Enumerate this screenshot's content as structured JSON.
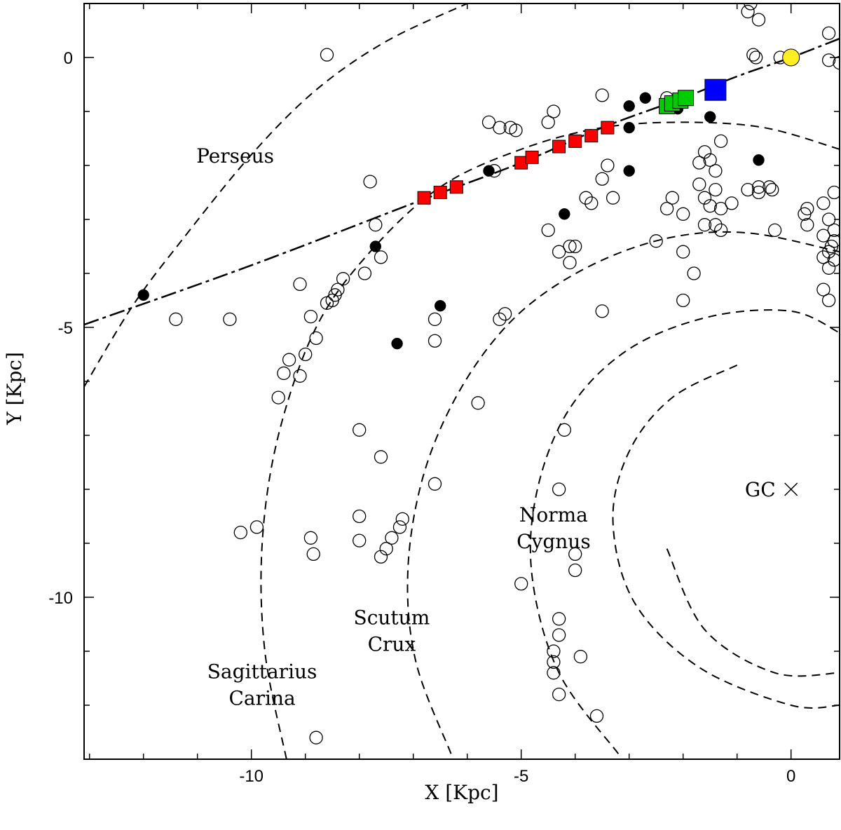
{
  "chart_data": {
    "type": "scatter",
    "xlabel": "X [Kpc]",
    "ylabel": "Y [Kpc]",
    "xlim": [
      -13.1,
      0.9
    ],
    "ylim": [
      -13.0,
      1.0
    ],
    "xticks": [
      -10,
      -5,
      0
    ],
    "yticks": [
      0,
      -5,
      -10
    ],
    "tick_labels_x": [
      "-10",
      "-5",
      "0"
    ],
    "tick_labels_y": [
      "0",
      "-5",
      "-10"
    ],
    "gc": {
      "x": 0,
      "y": -8.0,
      "label": "GC"
    },
    "arm_labels": [
      {
        "lines": [
          "Perseus"
        ],
        "x": -10.3,
        "y": -1.95
      },
      {
        "lines": [
          "Sagittarius",
          "Carina"
        ],
        "x": -9.8,
        "y": -11.5
      },
      {
        "lines": [
          "Scutum",
          "Crux"
        ],
        "x": -7.4,
        "y": -10.5
      },
      {
        "lines": [
          "Norma",
          "Cygnus"
        ],
        "x": -4.4,
        "y": -8.6
      }
    ],
    "arms_dashed": [
      {
        "name": "Perseus",
        "points": [
          [
            -13.1,
            -6.1
          ],
          [
            -12.2,
            -4.6
          ],
          [
            -11.3,
            -3.4
          ],
          [
            -10.0,
            -1.8
          ],
          [
            -8.8,
            -0.6
          ],
          [
            -7.5,
            0.3
          ],
          [
            -6.0,
            1.0
          ]
        ]
      },
      {
        "name": "Sagittarius-Carina",
        "points": [
          [
            -9.35,
            -13.0
          ],
          [
            -9.75,
            -11.0
          ],
          [
            -9.8,
            -9.0
          ],
          [
            -9.5,
            -7.0
          ],
          [
            -8.8,
            -5.0
          ],
          [
            -7.8,
            -3.6
          ],
          [
            -6.5,
            -2.4
          ],
          [
            -5.0,
            -1.7
          ],
          [
            -3.5,
            -1.3
          ],
          [
            -2.0,
            -1.2
          ],
          [
            -0.5,
            -1.3
          ],
          [
            0.9,
            -1.7
          ]
        ]
      },
      {
        "name": "Scutum-Crux",
        "points": [
          [
            -6.3,
            -12.9
          ],
          [
            -6.95,
            -11.2
          ],
          [
            -7.1,
            -9.5
          ],
          [
            -6.8,
            -7.7
          ],
          [
            -6.1,
            -6.1
          ],
          [
            -5.1,
            -4.8
          ],
          [
            -3.8,
            -3.9
          ],
          [
            -2.3,
            -3.35
          ],
          [
            -0.8,
            -3.25
          ],
          [
            0.9,
            -3.6
          ]
        ]
      },
      {
        "name": "Norma-Cygnus",
        "points": [
          [
            -3.2,
            -12.9
          ],
          [
            -4.3,
            -11.4
          ],
          [
            -4.8,
            -9.6
          ],
          [
            -4.7,
            -8.0
          ],
          [
            -4.1,
            -6.5
          ],
          [
            -3.0,
            -5.4
          ],
          [
            -1.5,
            -4.8
          ],
          [
            0.0,
            -4.7
          ],
          [
            0.9,
            -5.1
          ]
        ]
      },
      {
        "name": "Inner-outer",
        "points": [
          [
            -1.0,
            -5.7
          ],
          [
            -2.2,
            -6.3
          ],
          [
            -3.0,
            -7.3
          ],
          [
            -3.3,
            -8.6
          ],
          [
            -2.9,
            -10.1
          ],
          [
            -1.7,
            -11.3
          ],
          [
            0.0,
            -12.0
          ],
          [
            0.9,
            -12.0
          ]
        ]
      },
      {
        "name": "Inner-inner",
        "points": [
          [
            -2.3,
            -9.1
          ],
          [
            -1.6,
            -10.6
          ],
          [
            -0.3,
            -11.4
          ],
          [
            0.9,
            -11.4
          ]
        ]
      }
    ],
    "fit_line": [
      [
        -13.1,
        -4.95
      ],
      [
        -10.0,
        -3.85
      ],
      [
        -7.0,
        -2.7
      ],
      [
        -5.0,
        -1.95
      ],
      [
        -3.5,
        -1.3
      ],
      [
        -2.0,
        -0.75
      ],
      [
        -1.0,
        -0.35
      ],
      [
        0.0,
        0.0
      ],
      [
        0.9,
        0.35
      ]
    ],
    "series": [
      {
        "name": "open-circles",
        "marker": "open-circle",
        "color": "#000000",
        "points": [
          [
            -8.6,
            0.05
          ],
          [
            -0.8,
            0.85
          ],
          [
            -0.6,
            0.7
          ],
          [
            -0.75,
            1.0
          ],
          [
            0.7,
            0.45
          ],
          [
            0.7,
            -0.05
          ],
          [
            0.9,
            -0.1
          ],
          [
            -0.7,
            0.05
          ],
          [
            -0.2,
            0.0
          ],
          [
            -0.65,
            0.0
          ],
          [
            -2.3,
            -0.75
          ],
          [
            -3.5,
            -0.7
          ],
          [
            -4.4,
            -1.0
          ],
          [
            -4.5,
            -1.2
          ],
          [
            -5.6,
            -1.2
          ],
          [
            -5.2,
            -1.3
          ],
          [
            -5.4,
            -1.3
          ],
          [
            -5.1,
            -1.35
          ],
          [
            -1.3,
            -1.55
          ],
          [
            -1.6,
            -1.75
          ],
          [
            -1.5,
            -1.9
          ],
          [
            -1.7,
            -1.95
          ],
          [
            -1.4,
            -2.1
          ],
          [
            -1.7,
            -2.35
          ],
          [
            -1.4,
            -2.45
          ],
          [
            -1.6,
            -2.6
          ],
          [
            -1.5,
            -2.75
          ],
          [
            -1.3,
            -2.8
          ],
          [
            -1.1,
            -2.7
          ],
          [
            -1.6,
            -3.1
          ],
          [
            -1.4,
            -3.1
          ],
          [
            -1.3,
            -3.2
          ],
          [
            -0.8,
            -2.45
          ],
          [
            -0.6,
            -2.4
          ],
          [
            -0.6,
            -2.5
          ],
          [
            -0.35,
            -2.45
          ],
          [
            -0.3,
            -3.2
          ],
          [
            -3.4,
            -2.0
          ],
          [
            -3.5,
            -2.25
          ],
          [
            -3.7,
            -2.7
          ],
          [
            -3.8,
            -2.6
          ],
          [
            -3.3,
            -2.6
          ],
          [
            -2.3,
            -2.8
          ],
          [
            -2.0,
            -2.9
          ],
          [
            -2.2,
            -2.6
          ],
          [
            -0.4,
            -2.4
          ],
          [
            -5.5,
            -2.1
          ],
          [
            -4.5,
            -3.2
          ],
          [
            -4.1,
            -3.5
          ],
          [
            -4.0,
            -3.5
          ],
          [
            -3.5,
            -4.7
          ],
          [
            -4.1,
            -3.8
          ],
          [
            -7.8,
            -2.3
          ],
          [
            -7.7,
            -3.1
          ],
          [
            -7.6,
            -3.7
          ],
          [
            -7.9,
            -4.0
          ],
          [
            -8.3,
            -4.1
          ],
          [
            -8.4,
            -4.3
          ],
          [
            -8.45,
            -4.4
          ],
          [
            -8.5,
            -4.5
          ],
          [
            -8.6,
            -4.55
          ],
          [
            -9.1,
            -4.2
          ],
          [
            -8.9,
            -4.8
          ],
          [
            -8.8,
            -5.2
          ],
          [
            -9.0,
            -5.5
          ],
          [
            -9.3,
            -5.6
          ],
          [
            -9.4,
            -5.85
          ],
          [
            -9.1,
            -5.9
          ],
          [
            -9.5,
            -6.3
          ],
          [
            -10.4,
            -4.85
          ],
          [
            -11.4,
            -4.85
          ],
          [
            -6.6,
            -4.85
          ],
          [
            -6.6,
            -5.25
          ],
          [
            -5.4,
            -4.85
          ],
          [
            -5.3,
            -4.75
          ],
          [
            -5.8,
            -6.4
          ],
          [
            -4.3,
            -3.6
          ],
          [
            -2.5,
            -3.4
          ],
          [
            -2.0,
            -3.6
          ],
          [
            -1.8,
            -4.0
          ],
          [
            -2.0,
            -4.5
          ],
          [
            -4.2,
            -6.9
          ],
          [
            -4.3,
            -8.0
          ],
          [
            -8.0,
            -6.9
          ],
          [
            -7.6,
            -7.4
          ],
          [
            -6.6,
            -7.9
          ],
          [
            -10.2,
            -8.8
          ],
          [
            -9.9,
            -8.7
          ],
          [
            -8.9,
            -8.9
          ],
          [
            -8.85,
            -9.2
          ],
          [
            -8.0,
            -8.5
          ],
          [
            -8.0,
            -8.95
          ],
          [
            -7.2,
            -8.55
          ],
          [
            -7.25,
            -8.7
          ],
          [
            -7.4,
            -8.9
          ],
          [
            -7.6,
            -9.25
          ],
          [
            -7.5,
            -9.1
          ],
          [
            -4.0,
            -9.2
          ],
          [
            -4.0,
            -9.5
          ],
          [
            -5.0,
            -9.75
          ],
          [
            -4.3,
            -10.4
          ],
          [
            -4.3,
            -10.7
          ],
          [
            -4.4,
            -11.0
          ],
          [
            -4.4,
            -11.2
          ],
          [
            -4.4,
            -11.4
          ],
          [
            -3.9,
            -11.1
          ],
          [
            -4.3,
            -11.8
          ],
          [
            -3.6,
            -12.2
          ],
          [
            -8.8,
            -12.6
          ],
          [
            0.7,
            -3.0
          ],
          [
            0.8,
            -3.2
          ],
          [
            0.6,
            -3.3
          ],
          [
            0.8,
            -3.4
          ],
          [
            0.75,
            -3.5
          ],
          [
            0.8,
            -3.75
          ],
          [
            0.7,
            -3.6
          ],
          [
            0.6,
            -3.7
          ],
          [
            0.6,
            -4.3
          ],
          [
            0.7,
            -4.5
          ],
          [
            0.3,
            -2.8
          ],
          [
            0.25,
            -2.9
          ],
          [
            0.3,
            -3.1
          ],
          [
            0.8,
            -2.5
          ],
          [
            0.6,
            -2.7
          ],
          [
            0.7,
            -3.9
          ]
        ]
      },
      {
        "name": "filled-circles",
        "marker": "filled-circle",
        "color": "#000000",
        "points": [
          [
            -2.7,
            -0.75
          ],
          [
            -3.0,
            -0.9
          ],
          [
            -2.1,
            -0.95
          ],
          [
            -1.5,
            -1.1
          ],
          [
            -3.0,
            -1.3
          ],
          [
            -5.6,
            -2.1
          ],
          [
            -3.0,
            -2.1
          ],
          [
            -0.6,
            -1.9
          ],
          [
            -4.2,
            -2.9
          ],
          [
            -7.7,
            -3.5
          ],
          [
            -12.0,
            -4.4
          ],
          [
            -6.5,
            -4.6
          ],
          [
            -7.3,
            -5.3
          ]
        ]
      },
      {
        "name": "red-squares",
        "marker": "filled-square",
        "color": "#ff0000",
        "points": [
          [
            -6.8,
            -2.6
          ],
          [
            -6.5,
            -2.5
          ],
          [
            -6.2,
            -2.4
          ],
          [
            -5.0,
            -1.95
          ],
          [
            -4.8,
            -1.85
          ],
          [
            -4.3,
            -1.65
          ],
          [
            -4.0,
            -1.55
          ],
          [
            -3.7,
            -1.45
          ],
          [
            -3.4,
            -1.3
          ]
        ]
      },
      {
        "name": "green-squares",
        "marker": "filled-square",
        "color": "#00cc00",
        "points": [
          [
            -2.3,
            -0.9
          ],
          [
            -2.2,
            -0.85
          ],
          [
            -2.05,
            -0.8
          ],
          [
            -1.95,
            -0.75
          ]
        ]
      },
      {
        "name": "blue-square",
        "marker": "filled-square",
        "color": "#0000ff",
        "points": [
          [
            -1.4,
            -0.6
          ]
        ]
      },
      {
        "name": "sun",
        "marker": "filled-circle",
        "color": "#ffee22",
        "points": [
          [
            0.0,
            0.0
          ]
        ]
      }
    ]
  }
}
